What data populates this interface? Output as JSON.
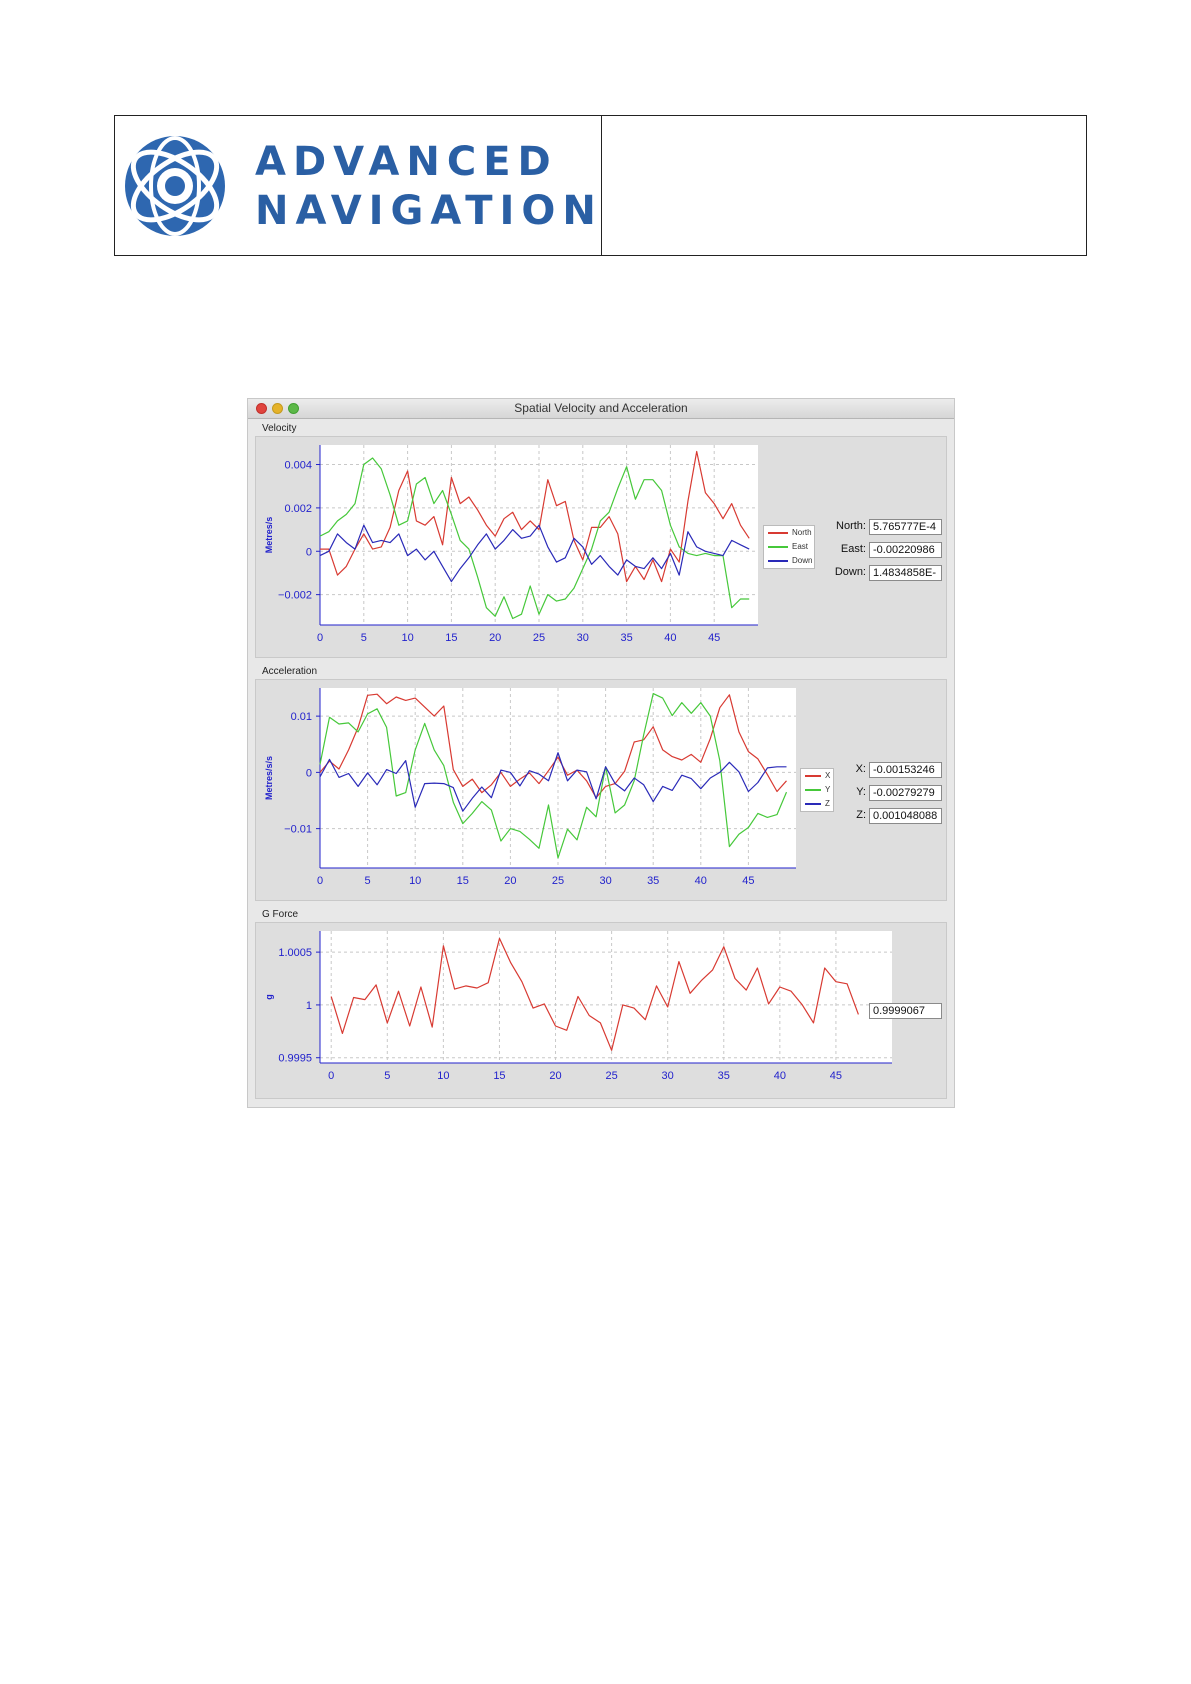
{
  "logo": {
    "line1": "ADVANCED",
    "line2": "NAVIGATION"
  },
  "window": {
    "title": "Spatial Velocity and Acceleration"
  },
  "colors": {
    "red": "#d83a32",
    "green": "#46c83a",
    "blue": "#2a2ab8",
    "axis": "#2222cc"
  },
  "velocity": {
    "group_label": "Velocity",
    "fields": [
      {
        "label": "North:",
        "value": "5.765777E-4"
      },
      {
        "label": "East:",
        "value": "-0.00220986"
      },
      {
        "label": "Down:",
        "value": "1.4834858E-"
      }
    ]
  },
  "acceleration": {
    "group_label": "Acceleration",
    "fields": [
      {
        "label": "X:",
        "value": "-0.00153246"
      },
      {
        "label": "Y:",
        "value": "-0.00279279"
      },
      {
        "label": "Z:",
        "value": "0.001048088"
      }
    ]
  },
  "gforce": {
    "group_label": "G Force",
    "value": "0.9999067"
  },
  "chart_data": [
    {
      "type": "line",
      "title": "Velocity",
      "xlabel": "",
      "ylabel": "Metres/s",
      "xlim": [
        0,
        50
      ],
      "ylim": [
        -0.0034,
        0.0049
      ],
      "xticks": [
        0,
        5,
        10,
        15,
        20,
        25,
        30,
        35,
        40,
        45
      ],
      "yticks": [
        0.004,
        0.002,
        0,
        -0.002
      ],
      "ytick_labels": [
        "0.004",
        "0.002",
        "0",
        "−0.002"
      ],
      "legend": "right",
      "grid": true,
      "x": [
        0,
        1,
        2,
        3,
        4,
        5,
        6,
        7,
        8,
        9,
        10,
        11,
        12,
        13,
        14,
        15,
        16,
        17,
        18,
        19,
        20,
        21,
        22,
        23,
        24,
        25,
        26,
        27,
        28,
        29,
        30,
        31,
        32,
        33,
        34,
        35,
        36,
        37,
        38,
        39,
        40,
        41,
        42,
        43,
        44,
        45,
        46,
        47,
        48,
        49
      ],
      "series": [
        {
          "name": "North",
          "color": "#d83a32",
          "values": [
            0.0001,
            0.0001,
            -0.0011,
            -0.0007,
            0.0001,
            0.0008,
            0.0001,
            0.0002,
            0.0011,
            0.0028,
            0.0037,
            0.0014,
            0.0012,
            0.0016,
            0.0003,
            0.0034,
            0.0022,
            0.0025,
            0.0019,
            0.0012,
            0.0007,
            0.0015,
            0.0018,
            0.001,
            0.0014,
            0.001,
            0.0033,
            0.0021,
            0.0023,
            0.0005,
            -0.0004,
            0.0011,
            0.0011,
            0.0016,
            0.0008,
            -0.0014,
            -0.0007,
            -0.0013,
            -0.0004,
            -0.0014,
            0.0001,
            -0.0005,
            0.0023,
            0.0046,
            0.0027,
            0.0022,
            0.0015,
            0.0022,
            0.0012,
            0.0006
          ]
        },
        {
          "name": "East",
          "color": "#46c83a",
          "values": [
            0.0007,
            0.0009,
            0.0014,
            0.0017,
            0.0022,
            0.004,
            0.0043,
            0.0038,
            0.0026,
            0.0012,
            0.0014,
            0.0031,
            0.0034,
            0.0022,
            0.0028,
            0.0017,
            0.0005,
            0.0001,
            -0.0012,
            -0.0026,
            -0.003,
            -0.0021,
            -0.0031,
            -0.0029,
            -0.0016,
            -0.0029,
            -0.002,
            -0.0023,
            -0.0022,
            -0.0017,
            -0.0008,
            0.0001,
            0.0014,
            0.0018,
            0.0029,
            0.0039,
            0.0024,
            0.0033,
            0.0033,
            0.0028,
            0.0012,
            0.0002,
            -0.0001,
            -0.0002,
            -0.0001,
            -0.0002,
            -0.0002,
            -0.0026,
            -0.0022,
            -0.0022
          ]
        },
        {
          "name": "Down",
          "color": "#2a2ab8",
          "values": [
            -0.0002,
            0.0,
            0.0008,
            0.0004,
            0.0001,
            0.0012,
            0.0004,
            0.0005,
            0.0004,
            0.0008,
            -0.0002,
            0.0001,
            -0.0004,
            0.0,
            -0.0007,
            -0.0014,
            -0.0008,
            -0.0003,
            0.0003,
            0.0008,
            0.0001,
            0.0005,
            0.001,
            0.0006,
            0.0007,
            0.0012,
            0.0002,
            -0.0005,
            -0.0003,
            0.0006,
            0.0002,
            -0.0006,
            -0.0002,
            -0.0007,
            -0.0011,
            -0.0004,
            -0.0007,
            -0.0008,
            -0.0003,
            -0.0008,
            -0.0001,
            -0.0011,
            0.0009,
            0.0002,
            0.0,
            -0.0001,
            -0.0002,
            0.0005,
            0.0003,
            0.0001
          ]
        }
      ]
    },
    {
      "type": "line",
      "title": "Acceleration",
      "xlabel": "",
      "ylabel": "Metres/s/s",
      "xlim": [
        0,
        50
      ],
      "ylim": [
        -0.017,
        0.015
      ],
      "xticks": [
        0,
        5,
        10,
        15,
        20,
        25,
        30,
        35,
        40,
        45
      ],
      "yticks": [
        0.01,
        0,
        -0.01
      ],
      "ytick_labels": [
        "0.01",
        "0",
        "−0.01"
      ],
      "legend": "right",
      "grid": true,
      "x": [
        0,
        1,
        2,
        3,
        4,
        5,
        6,
        7,
        8,
        9,
        10,
        11,
        12,
        13,
        14,
        15,
        16,
        17,
        18,
        19,
        20,
        21,
        22,
        23,
        24,
        25,
        26,
        27,
        28,
        29,
        30,
        31,
        32,
        33,
        34,
        35,
        36,
        37,
        38,
        39,
        40,
        41,
        42,
        43,
        44,
        45,
        46,
        47,
        48,
        49
      ],
      "series": [
        {
          "name": "X",
          "color": "#d83a32",
          "values": [
            0.0,
            0.002,
            0.0006,
            0.004,
            0.008,
            0.0137,
            0.0139,
            0.0122,
            0.0134,
            0.0128,
            0.0132,
            0.0116,
            0.01,
            0.0118,
            0.0005,
            -0.0025,
            -0.0012,
            -0.0036,
            -0.0022,
            0.0,
            -0.0025,
            -0.0012,
            -0.0001,
            -0.002,
            0.0003,
            0.0027,
            -0.0005,
            0.0004,
            -0.0015,
            -0.0045,
            -0.0025,
            -0.002,
            0.0002,
            0.0054,
            0.0058,
            0.0081,
            0.004,
            0.0028,
            0.0022,
            0.0032,
            0.0018,
            0.006,
            0.0115,
            0.0138,
            0.0072,
            0.0037,
            0.0024,
            -0.0004,
            -0.0034,
            -0.0015
          ]
        },
        {
          "name": "Y",
          "color": "#46c83a",
          "values": [
            0.0014,
            0.0098,
            0.0086,
            0.0088,
            0.0072,
            0.0104,
            0.0113,
            0.008,
            -0.0042,
            -0.0036,
            0.004,
            0.0087,
            0.004,
            0.0012,
            -0.0053,
            -0.0091,
            -0.0073,
            -0.0052,
            -0.0067,
            -0.0122,
            -0.01,
            -0.0105,
            -0.0119,
            -0.0135,
            -0.0058,
            -0.0152,
            -0.0101,
            -0.012,
            -0.0062,
            -0.0079,
            0.001,
            -0.0072,
            -0.0058,
            -0.0015,
            0.0067,
            0.014,
            0.0132,
            0.0101,
            0.0124,
            0.0105,
            0.0124,
            0.01,
            0.0021,
            -0.0132,
            -0.011,
            -0.0098,
            -0.0073,
            -0.008,
            -0.0075,
            -0.0035
          ]
        },
        {
          "name": "Z",
          "color": "#2a2ab8",
          "values": [
            -0.0008,
            0.0023,
            -0.0009,
            -0.0002,
            -0.0025,
            -0.0001,
            -0.0022,
            0.0005,
            -0.0002,
            0.0021,
            -0.0062,
            -0.002,
            -0.0019,
            -0.002,
            -0.0027,
            -0.0069,
            -0.0046,
            -0.0026,
            -0.0045,
            0.0004,
            0.0,
            -0.0024,
            0.0003,
            -0.0003,
            -0.0015,
            0.0035,
            -0.0015,
            0.0004,
            0.0001,
            -0.0047,
            0.001,
            -0.002,
            -0.0033,
            -0.001,
            -0.0022,
            -0.0052,
            -0.0025,
            -0.0032,
            -0.0005,
            -0.0011,
            -0.0029,
            -0.001,
            0.0,
            0.0018,
            0.0001,
            -0.0034,
            -0.0018,
            0.0008,
            0.001,
            0.001
          ]
        }
      ]
    },
    {
      "type": "line",
      "title": "G Force",
      "xlabel": "",
      "ylabel": "g",
      "xlim": [
        -1,
        50
      ],
      "ylim": [
        0.99945,
        1.0007
      ],
      "xticks": [
        0,
        5,
        10,
        15,
        20,
        25,
        30,
        35,
        40,
        45
      ],
      "yticks": [
        1.0005,
        1,
        0.9995
      ],
      "ytick_labels": [
        "1.0005",
        "1",
        "0.9995"
      ],
      "grid": true,
      "x": [
        0,
        1,
        2,
        3,
        4,
        5,
        6,
        7,
        8,
        9,
        10,
        11,
        12,
        13,
        14,
        15,
        16,
        17,
        18,
        19,
        20,
        21,
        22,
        23,
        24,
        25,
        26,
        27,
        28,
        29,
        30,
        31,
        32,
        33,
        34,
        35,
        36,
        37,
        38,
        39,
        40,
        41,
        42,
        43,
        44,
        45,
        46,
        47
      ],
      "series": [
        {
          "name": "",
          "color": "#d83a32",
          "values": [
            1.00008,
            0.99973,
            1.00007,
            1.00005,
            1.00019,
            0.99983,
            1.00013,
            0.9998,
            1.00017,
            0.99979,
            1.00056,
            1.00015,
            1.00018,
            1.00016,
            1.00021,
            1.00063,
            1.0004,
            1.00022,
            0.99997,
            1.00001,
            0.9998,
            0.99976,
            1.00008,
            0.9999,
            0.99983,
            0.99957,
            1.0,
            0.99997,
            0.99986,
            1.00018,
            0.99998,
            1.00041,
            1.00011,
            1.00023,
            1.00033,
            1.00055,
            1.00025,
            1.00014,
            1.00035,
            1.00001,
            1.00017,
            1.00013,
            1.0,
            0.99983,
            1.00035,
            1.00022,
            1.0002,
            0.99991
          ]
        }
      ]
    }
  ]
}
